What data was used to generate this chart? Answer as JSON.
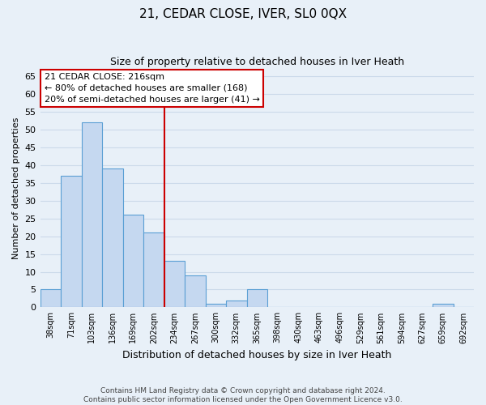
{
  "title": "21, CEDAR CLOSE, IVER, SL0 0QX",
  "subtitle": "Size of property relative to detached houses in Iver Heath",
  "xlabel": "Distribution of detached houses by size in Iver Heath",
  "ylabel": "Number of detached properties",
  "bar_labels": [
    "38sqm",
    "71sqm",
    "103sqm",
    "136sqm",
    "169sqm",
    "202sqm",
    "234sqm",
    "267sqm",
    "300sqm",
    "332sqm",
    "365sqm",
    "398sqm",
    "430sqm",
    "463sqm",
    "496sqm",
    "529sqm",
    "561sqm",
    "594sqm",
    "627sqm",
    "659sqm",
    "692sqm"
  ],
  "bar_values": [
    5,
    37,
    52,
    39,
    26,
    21,
    13,
    9,
    1,
    2,
    5,
    0,
    0,
    0,
    0,
    0,
    0,
    0,
    0,
    1,
    0
  ],
  "bar_color": "#c5d8f0",
  "bar_edge_color": "#5a9fd4",
  "vline_color": "#cc0000",
  "ylim": [
    0,
    67
  ],
  "yticks": [
    0,
    5,
    10,
    15,
    20,
    25,
    30,
    35,
    40,
    45,
    50,
    55,
    60,
    65
  ],
  "annotation_title": "21 CEDAR CLOSE: 216sqm",
  "annotation_line1": "← 80% of detached houses are smaller (168)",
  "annotation_line2": "20% of semi-detached houses are larger (41) →",
  "annotation_box_color": "#ffffff",
  "annotation_box_edge": "#cc0000",
  "footer1": "Contains HM Land Registry data © Crown copyright and database right 2024.",
  "footer2": "Contains public sector information licensed under the Open Government Licence v3.0.",
  "grid_color": "#ccdaea",
  "background_color": "#e8f0f8"
}
